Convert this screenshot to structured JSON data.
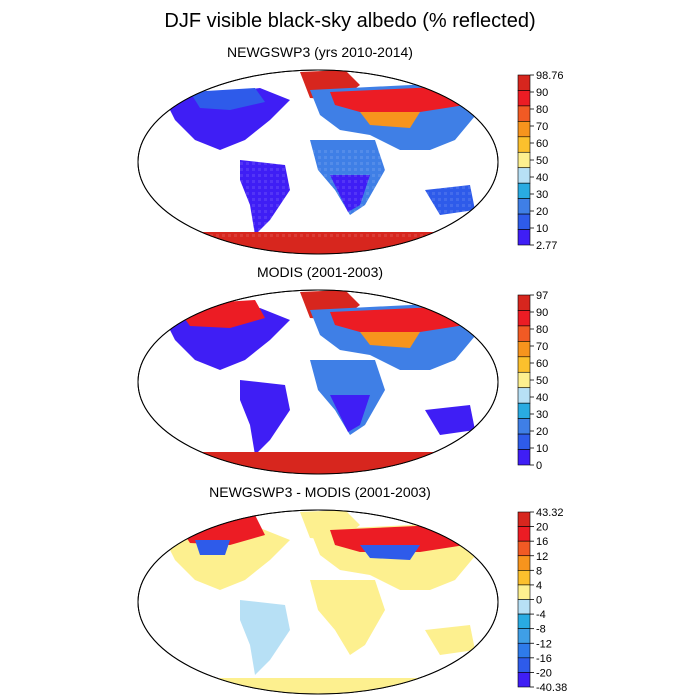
{
  "figure": {
    "title": "DJF visible black-sky albedo (% reflected)"
  },
  "panels": [
    {
      "title": "NEWGSWP3 (yrs 2010-2014)",
      "colorbar": {
        "labels": [
          "98.76",
          "90",
          "80",
          "70",
          "60",
          "50",
          "40",
          "30",
          "20",
          "10",
          "2.77"
        ],
        "colors": [
          "#d7261e",
          "#ec1c24",
          "#f15a24",
          "#f7941d",
          "#fbc02d",
          "#fdf08f",
          "#b7e0f5",
          "#29abe2",
          "#3f7fe6",
          "#2e5bea",
          "#3f1ef5"
        ]
      }
    },
    {
      "title": "MODIS (2001-2003)",
      "colorbar": {
        "labels": [
          "97",
          "90",
          "80",
          "70",
          "60",
          "50",
          "40",
          "30",
          "20",
          "10",
          "0"
        ],
        "colors": [
          "#d7261e",
          "#ec1c24",
          "#f15a24",
          "#f7941d",
          "#fbc02d",
          "#fdf08f",
          "#b7e0f5",
          "#29abe2",
          "#3f7fe6",
          "#2e5bea",
          "#3f1ef5"
        ]
      }
    },
    {
      "title": "NEWGSWP3 - MODIS (2001-2003)",
      "colorbar": {
        "labels": [
          "43.32",
          "20",
          "16",
          "12",
          "8",
          "4",
          "0",
          "-4",
          "-8",
          "-12",
          "-16",
          "-20",
          "-40.38"
        ],
        "colors": [
          "#d7261e",
          "#ec1c24",
          "#f15a24",
          "#f7941d",
          "#fbc02d",
          "#fdf08f",
          "#b7e0f5",
          "#29abe2",
          "#3f9fe6",
          "#2e7bea",
          "#2e5bea",
          "#3f1ef5"
        ]
      }
    }
  ]
}
